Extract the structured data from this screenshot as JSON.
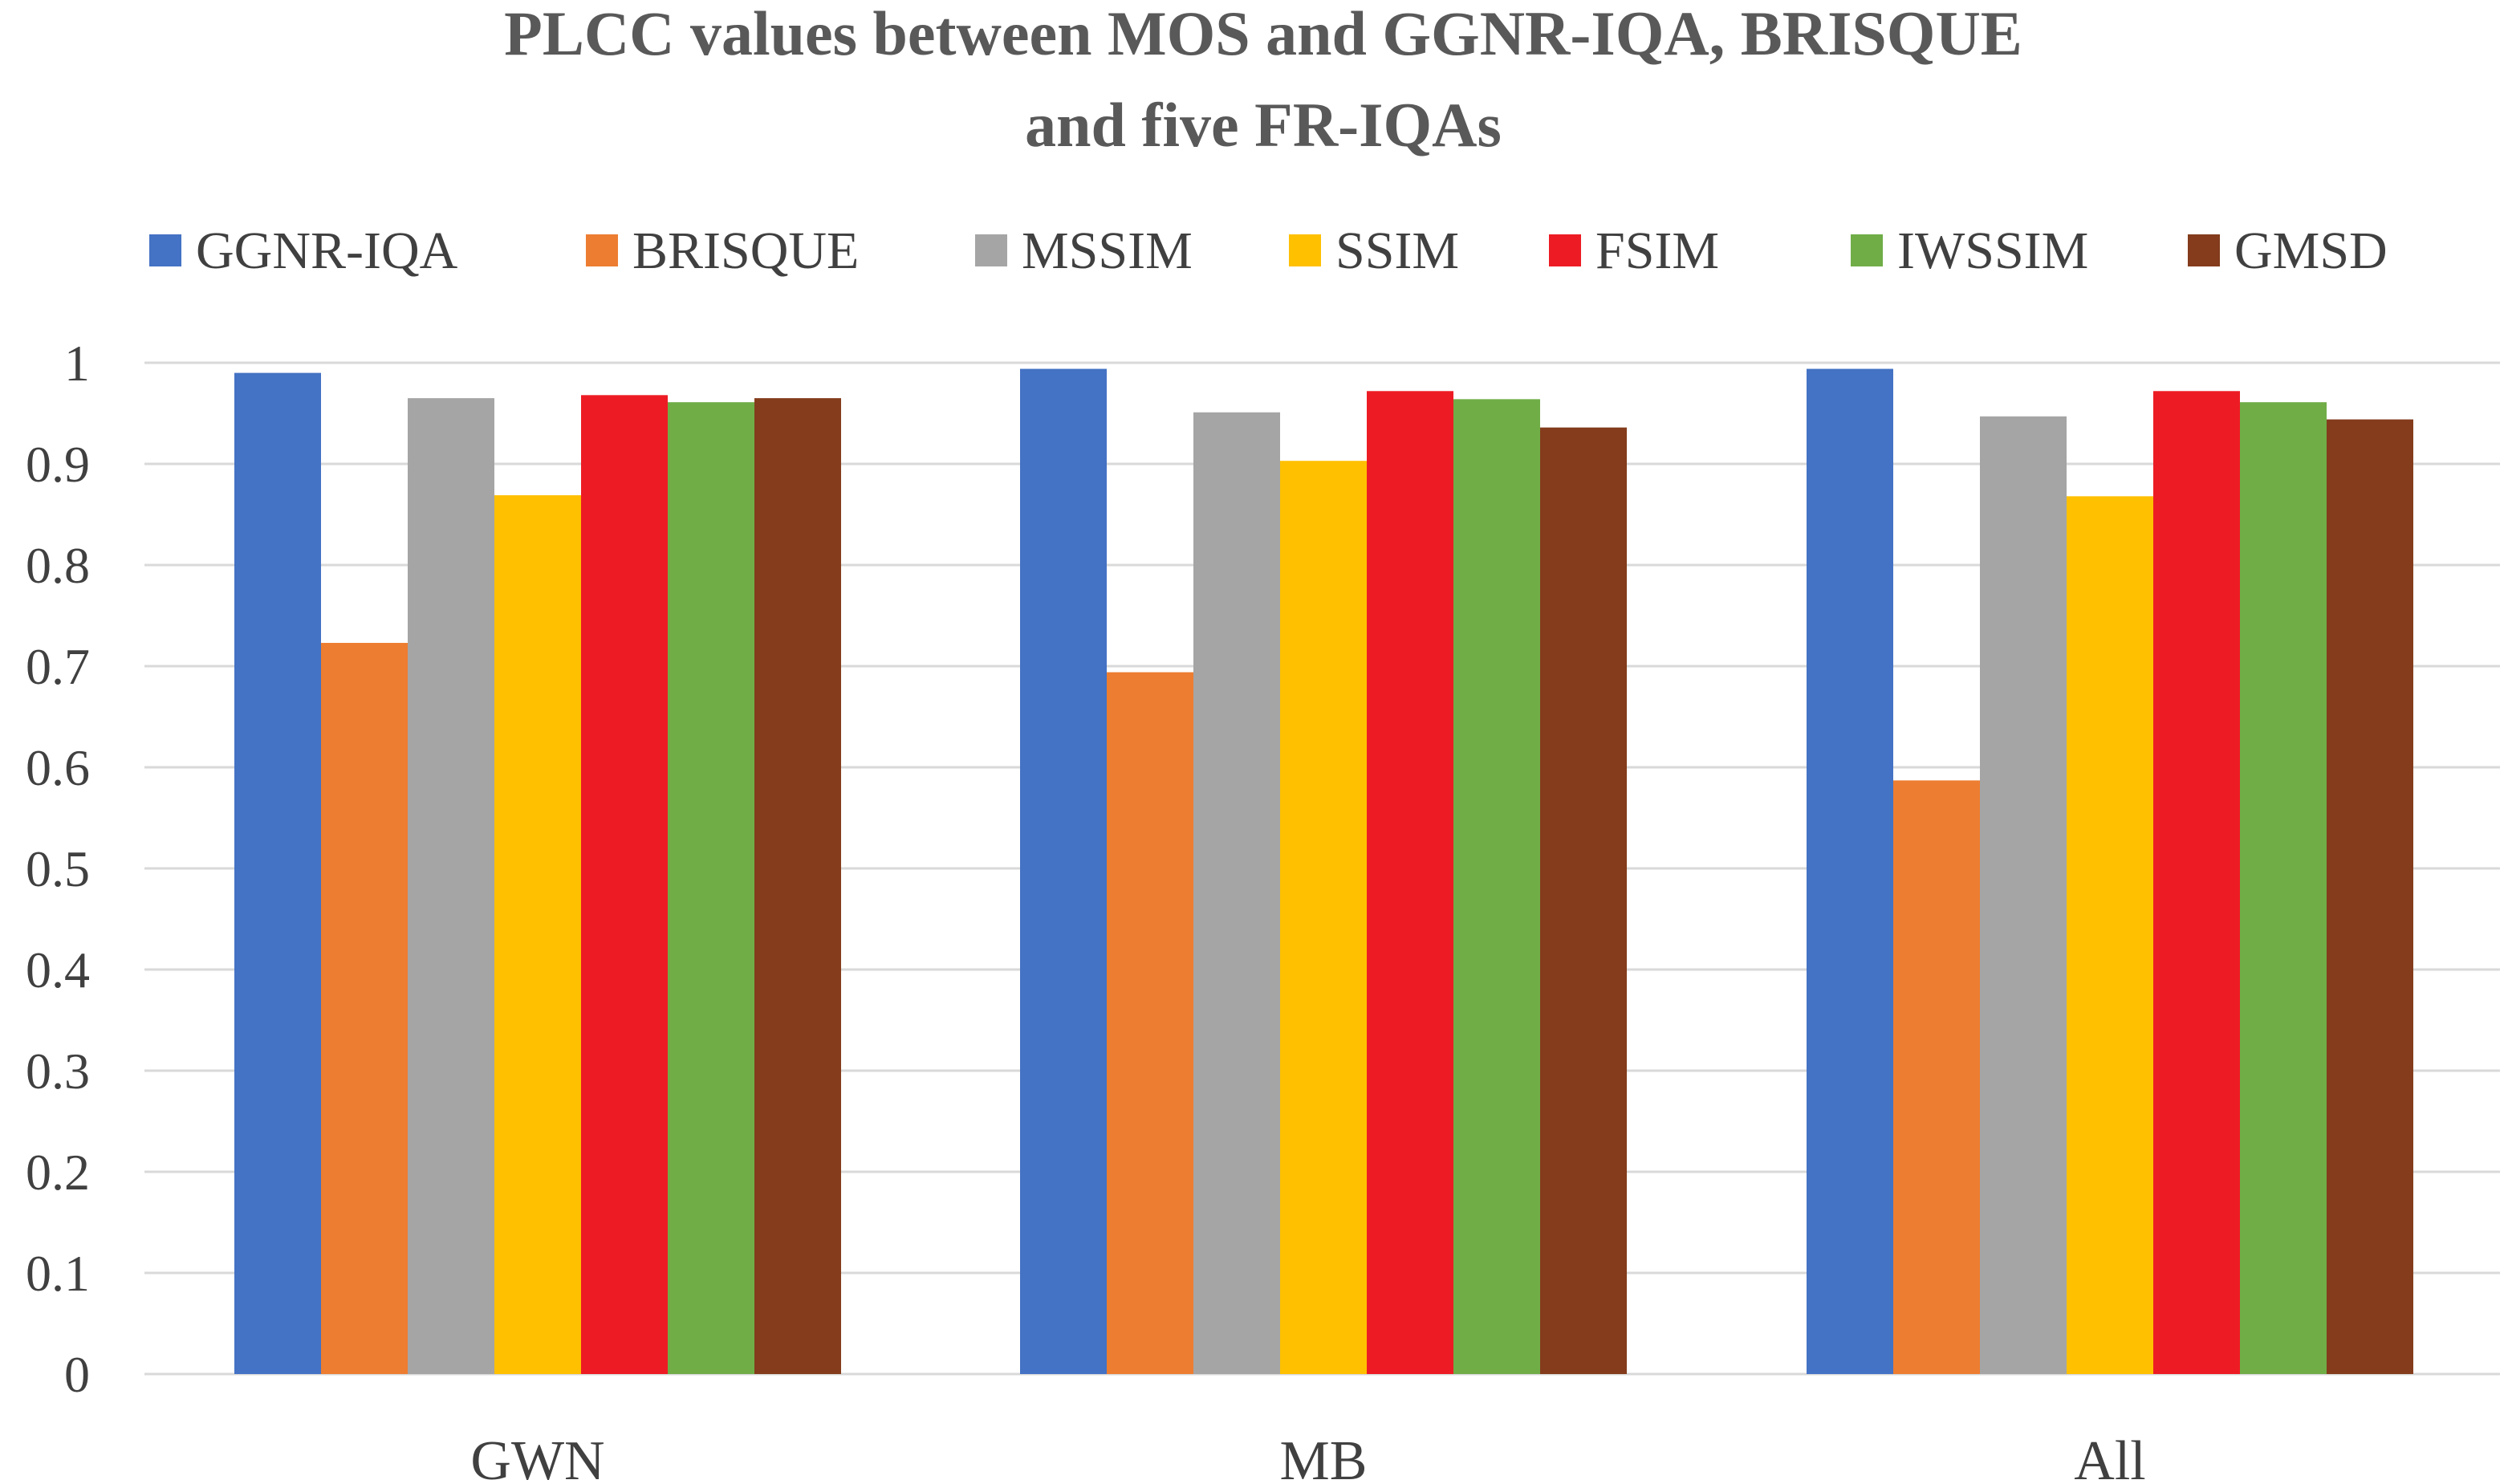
{
  "chart_data": {
    "type": "bar",
    "title_lines": [
      "PLCC  values between MOS and GGNR-IQA, BRISQUE",
      "and five FR-IQAs"
    ],
    "legend_position": "top",
    "grid": true,
    "ylim": [
      0,
      1
    ],
    "yticks": [
      "0",
      "0.1",
      "0.2",
      "0.3",
      "0.4",
      "0.5",
      "0.6",
      "0.7",
      "0.8",
      "0.9",
      "1"
    ],
    "categories": [
      "GWN",
      "MB",
      "All"
    ],
    "series": [
      {
        "name": "GGNR-IQA",
        "color": "#4472C4",
        "values": [
          0.99,
          0.994,
          0.994
        ]
      },
      {
        "name": "BRISQUE",
        "color": "#ED7D31",
        "values": [
          0.723,
          0.694,
          0.587
        ]
      },
      {
        "name": "MSSIM",
        "color": "#A5A5A5",
        "values": [
          0.965,
          0.951,
          0.947
        ]
      },
      {
        "name": "SSIM",
        "color": "#FFC000",
        "values": [
          0.869,
          0.903,
          0.868
        ]
      },
      {
        "name": "FSIM",
        "color": "#ED1C24",
        "values": [
          0.968,
          0.972,
          0.972
        ]
      },
      {
        "name": "IWSSIM",
        "color": "#70AD47",
        "values": [
          0.961,
          0.964,
          0.961
        ]
      },
      {
        "name": "GMSD",
        "color": "#843C1C",
        "values": [
          0.965,
          0.936,
          0.944
        ]
      }
    ]
  }
}
